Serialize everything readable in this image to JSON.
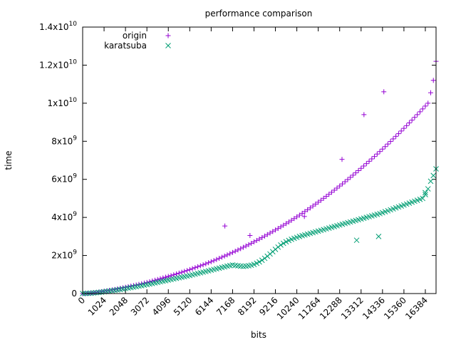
{
  "chart_data": {
    "type": "scatter",
    "title": "performance comparison",
    "xlabel": "bits",
    "ylabel": "time",
    "xlim": [
      0,
      16896
    ],
    "ylim": [
      0,
      14000000000
    ],
    "x_ticks": [
      {
        "value": 0,
        "label": "0"
      },
      {
        "value": 1024,
        "label": "1024"
      },
      {
        "value": 2048,
        "label": "2048"
      },
      {
        "value": 3072,
        "label": "3072"
      },
      {
        "value": 4096,
        "label": "4096"
      },
      {
        "value": 5120,
        "label": "5120"
      },
      {
        "value": 6144,
        "label": "6144"
      },
      {
        "value": 7168,
        "label": "7168"
      },
      {
        "value": 8192,
        "label": "8192"
      },
      {
        "value": 9216,
        "label": "9216"
      },
      {
        "value": 10240,
        "label": "10240"
      },
      {
        "value": 11264,
        "label": "11264"
      },
      {
        "value": 12288,
        "label": "12288"
      },
      {
        "value": 13312,
        "label": "13312"
      },
      {
        "value": 14336,
        "label": "14336"
      },
      {
        "value": 15360,
        "label": "15360"
      },
      {
        "value": 16384,
        "label": "16384"
      }
    ],
    "y_ticks": [
      {
        "value": 0,
        "mantissa": "0",
        "exp": ""
      },
      {
        "value": 2000000000,
        "mantissa": "2x10",
        "exp": "9"
      },
      {
        "value": 4000000000,
        "mantissa": "4x10",
        "exp": "9"
      },
      {
        "value": 6000000000,
        "mantissa": "6x10",
        "exp": "9"
      },
      {
        "value": 8000000000,
        "mantissa": "8x10",
        "exp": "9"
      },
      {
        "value": 10000000000,
        "mantissa": "1x10",
        "exp": "10"
      },
      {
        "value": 12000000000,
        "mantissa": "1.2x10",
        "exp": "10"
      },
      {
        "value": 14000000000,
        "mantissa": "1.4x10",
        "exp": "10"
      }
    ],
    "grid": false,
    "legend_position": "top-left",
    "series": [
      {
        "name": "origin",
        "marker": "plus",
        "color": "#9400d3",
        "x": [
          0,
          128,
          256,
          384,
          512,
          640,
          768,
          896,
          1024,
          1152,
          1280,
          1408,
          1536,
          1664,
          1792,
          1920,
          2048,
          2176,
          2304,
          2432,
          2560,
          2688,
          2816,
          2944,
          3072,
          3200,
          3328,
          3456,
          3584,
          3712,
          3840,
          3968,
          4096,
          4224,
          4352,
          4480,
          4608,
          4736,
          4864,
          4992,
          5120,
          5248,
          5376,
          5504,
          5632,
          5760,
          5888,
          6016,
          6144,
          6272,
          6400,
          6528,
          6656,
          6784,
          6912,
          7040,
          7168,
          7296,
          7424,
          7552,
          7680,
          7808,
          7936,
          8064,
          8192,
          8320,
          8448,
          8576,
          8704,
          8832,
          8960,
          9088,
          9216,
          9344,
          9472,
          9600,
          9728,
          9856,
          9984,
          10112,
          10240,
          10368,
          10496,
          10624,
          10752,
          10880,
          11008,
          11136,
          11264,
          11392,
          11520,
          11648,
          11776,
          11904,
          12032,
          12160,
          12288,
          12416,
          12544,
          12672,
          12800,
          12928,
          13056,
          13184,
          13312,
          13440,
          13568,
          13696,
          13824,
          13952,
          14080,
          14208,
          14336,
          14464,
          14592,
          14720,
          14848,
          14976,
          15104,
          15232,
          15360,
          15488,
          15616,
          15744,
          15872,
          16000,
          16128,
          16256,
          16384,
          16512,
          16640,
          16768,
          16896,
          6800,
          8000,
          10600,
          12400,
          13450,
          14400
        ],
        "y": [
          0,
          5000000,
          15000000,
          25000000,
          40000000,
          55000000,
          75000000,
          95000000,
          120000000,
          140000000,
          165000000,
          190000000,
          215000000,
          240000000,
          270000000,
          300000000,
          330000000,
          360000000,
          390000000,
          420000000,
          450000000,
          480000000,
          515000000,
          550000000,
          585000000,
          620000000,
          660000000,
          700000000,
          740000000,
          780000000,
          820000000,
          860000000,
          900000000,
          940000000,
          985000000,
          1030000000,
          1075000000,
          1120000000,
          1165000000,
          1210000000,
          1260000000,
          1310000000,
          1360000000,
          1410000000,
          1460000000,
          1510000000,
          1565000000,
          1620000000,
          1675000000,
          1730000000,
          1790000000,
          1850000000,
          1910000000,
          1970000000,
          2030000000,
          2095000000,
          2160000000,
          2225000000,
          2290000000,
          2360000000,
          2430000000,
          2500000000,
          2570000000,
          2640000000,
          2715000000,
          2790000000,
          2865000000,
          2940000000,
          3020000000,
          3100000000,
          3180000000,
          3260000000,
          3340000000,
          3420000000,
          3505000000,
          3590000000,
          3675000000,
          3760000000,
          3850000000,
          3940000000,
          4030000000,
          4120000000,
          4215000000,
          4310000000,
          4405000000,
          4500000000,
          4600000000,
          4700000000,
          4800000000,
          4900000000,
          5005000000,
          5110000000,
          5215000000,
          5320000000,
          5430000000,
          5540000000,
          5650000000,
          5760000000,
          5875000000,
          5990000000,
          6105000000,
          6220000000,
          6340000000,
          6460000000,
          6580000000,
          6700000000,
          6825000000,
          6950000000,
          7075000000,
          7200000000,
          7330000000,
          7460000000,
          7590000000,
          7720000000,
          7855000000,
          7990000000,
          8125000000,
          8260000000,
          8400000000,
          8540000000,
          8680000000,
          8820000000,
          8965000000,
          9110000000,
          9255000000,
          9400000000,
          9550000000,
          9700000000,
          9850000000,
          10000000000,
          10550000000,
          11200000000,
          12200000000,
          3550000000,
          3050000000,
          4050000000,
          7050000000,
          9400000000,
          10600000000
        ]
      },
      {
        "name": "karatsuba",
        "marker": "cross",
        "color": "#009e73",
        "x": [
          0,
          128,
          256,
          384,
          512,
          640,
          768,
          896,
          1024,
          1152,
          1280,
          1408,
          1536,
          1664,
          1792,
          1920,
          2048,
          2176,
          2304,
          2432,
          2560,
          2688,
          2816,
          2944,
          3072,
          3200,
          3328,
          3456,
          3584,
          3712,
          3840,
          3968,
          4096,
          4224,
          4352,
          4480,
          4608,
          4736,
          4864,
          4992,
          5120,
          5248,
          5376,
          5504,
          5632,
          5760,
          5888,
          6016,
          6144,
          6272,
          6400,
          6528,
          6656,
          6784,
          6912,
          7040,
          7168,
          7296,
          7424,
          7552,
          7680,
          7808,
          7936,
          8064,
          8192,
          8320,
          8448,
          8576,
          8704,
          8832,
          8960,
          9088,
          9216,
          9344,
          9472,
          9600,
          9728,
          9856,
          9984,
          10112,
          10240,
          10368,
          10496,
          10624,
          10752,
          10880,
          11008,
          11136,
          11264,
          11392,
          11520,
          11648,
          11776,
          11904,
          12032,
          12160,
          12288,
          12416,
          12544,
          12672,
          12800,
          12928,
          13056,
          13184,
          13312,
          13440,
          13568,
          13696,
          13824,
          13952,
          14080,
          14208,
          14336,
          14464,
          14592,
          14720,
          14848,
          14976,
          15104,
          15232,
          15360,
          15488,
          15616,
          15744,
          15872,
          16000,
          16128,
          16256,
          16384,
          16512,
          16640,
          16768,
          16896,
          13100,
          14150,
          16380
        ],
        "y": [
          0,
          4000000,
          12000000,
          20000000,
          32000000,
          45000000,
          60000000,
          76000000,
          95000000,
          112000000,
          132000000,
          152000000,
          172000000,
          192000000,
          215000000,
          240000000,
          265000000,
          290000000,
          315000000,
          340000000,
          365000000,
          390000000,
          417000000,
          445000000,
          473000000,
          500000000,
          530000000,
          560000000,
          590000000,
          620000000,
          650000000,
          680000000,
          710000000,
          740000000,
          770000000,
          800000000,
          830000000,
          860000000,
          890000000,
          920000000,
          950000000,
          985000000,
          1020000000,
          1055000000,
          1090000000,
          1125000000,
          1160000000,
          1195000000,
          1230000000,
          1265000000,
          1300000000,
          1335000000,
          1370000000,
          1405000000,
          1440000000,
          1470000000,
          1500000000,
          1480000000,
          1460000000,
          1440000000,
          1430000000,
          1440000000,
          1460000000,
          1490000000,
          1530000000,
          1590000000,
          1660000000,
          1750000000,
          1850000000,
          1960000000,
          2080000000,
          2200000000,
          2320000000,
          2440000000,
          2550000000,
          2640000000,
          2720000000,
          2790000000,
          2850000000,
          2900000000,
          2950000000,
          3000000000,
          3040000000,
          3080000000,
          3120000000,
          3160000000,
          3200000000,
          3240000000,
          3280000000,
          3320000000,
          3360000000,
          3400000000,
          3440000000,
          3480000000,
          3520000000,
          3560000000,
          3600000000,
          3640000000,
          3680000000,
          3720000000,
          3760000000,
          3800000000,
          3840000000,
          3880000000,
          3920000000,
          3960000000,
          4000000000,
          4040000000,
          4080000000,
          4120000000,
          4160000000,
          4200000000,
          4250000000,
          4300000000,
          4350000000,
          4400000000,
          4450000000,
          4500000000,
          4550000000,
          4600000000,
          4650000000,
          4700000000,
          4750000000,
          4800000000,
          4850000000,
          4900000000,
          4950000000,
          5000000000,
          5200000000,
          5500000000,
          5900000000,
          6200000000,
          6550000000,
          2800000000,
          3000000000,
          5300000000
        ]
      }
    ]
  }
}
